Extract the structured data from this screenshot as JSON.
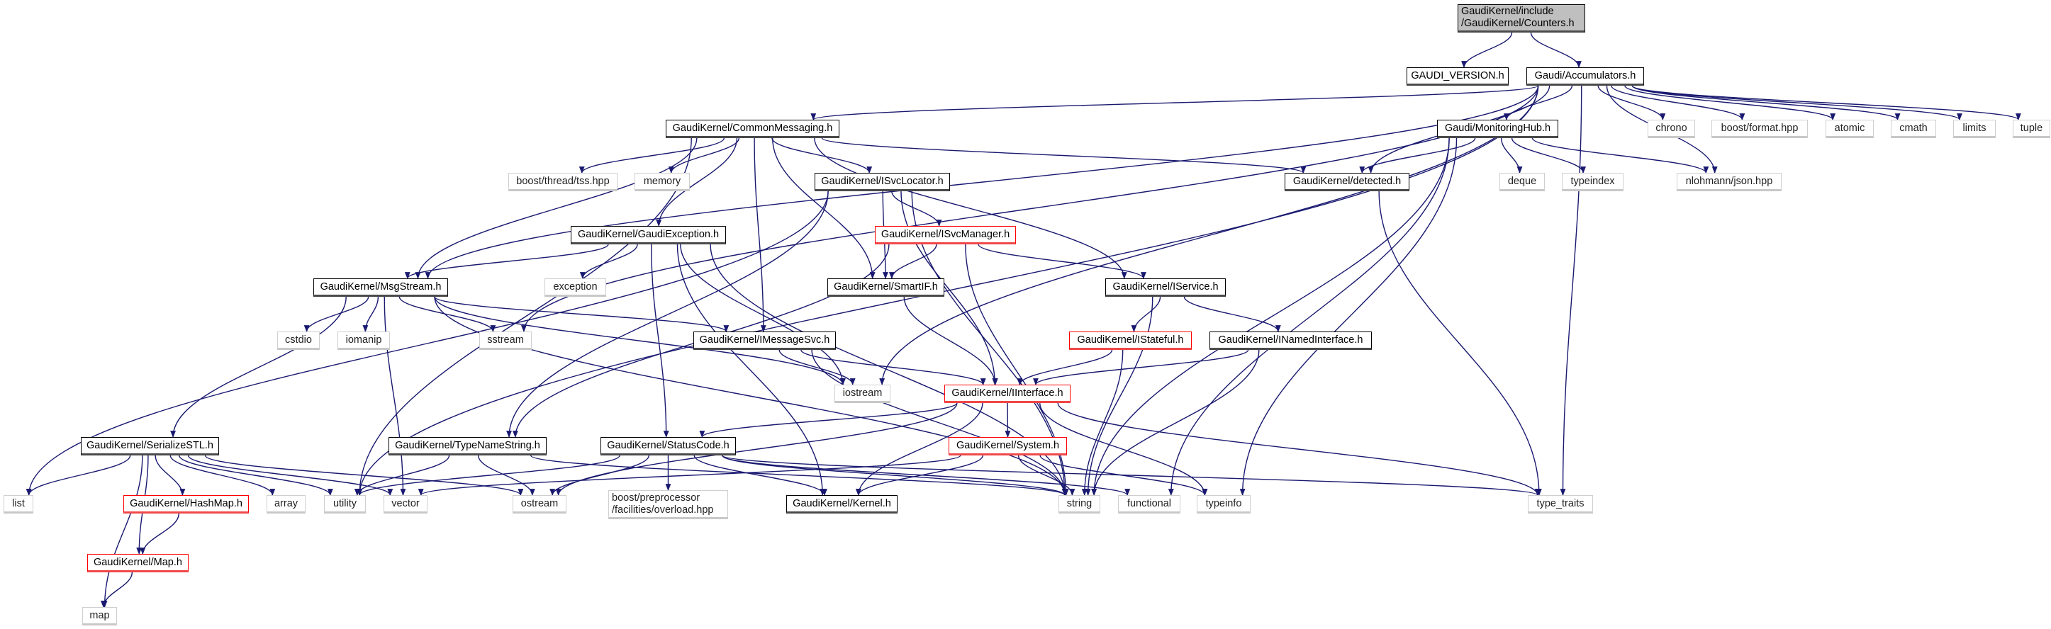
{
  "colors": {
    "edge": "#191970",
    "root_fill": "#bfbfbf",
    "truncated_border": "#ff0000",
    "external_border": "#cfcfcf",
    "documented_border": "#000000"
  },
  "nodes": [
    {
      "id": "counters",
      "label": "GaudiKernel/include",
      "label2": "/GaudiKernel/Counters.h",
      "kind": "root"
    },
    {
      "id": "gaudi-version",
      "label": "GAUDI_VERSION.h",
      "kind": "documented"
    },
    {
      "id": "accumulators",
      "label": "Gaudi/Accumulators.h",
      "kind": "documented"
    },
    {
      "id": "common-messaging",
      "label": "GaudiKernel/CommonMessaging.h",
      "kind": "documented"
    },
    {
      "id": "monitoring-hub",
      "label": "Gaudi/MonitoringHub.h",
      "kind": "documented"
    },
    {
      "id": "chrono",
      "label": "chrono",
      "kind": "external"
    },
    {
      "id": "boost-format",
      "label": "boost/format.hpp",
      "kind": "external"
    },
    {
      "id": "atomic",
      "label": "atomic",
      "kind": "external"
    },
    {
      "id": "cmath",
      "label": "cmath",
      "kind": "external"
    },
    {
      "id": "limits",
      "label": "limits",
      "kind": "external"
    },
    {
      "id": "tuple",
      "label": "tuple",
      "kind": "external"
    },
    {
      "id": "tss",
      "label": "boost/thread/tss.hpp",
      "kind": "external"
    },
    {
      "id": "memory",
      "label": "memory",
      "kind": "external"
    },
    {
      "id": "isvclocator",
      "label": "GaudiKernel/ISvcLocator.h",
      "kind": "documented"
    },
    {
      "id": "detected",
      "label": "GaudiKernel/detected.h",
      "kind": "documented"
    },
    {
      "id": "deque",
      "label": "deque",
      "kind": "external"
    },
    {
      "id": "typeindex",
      "label": "typeindex",
      "kind": "external"
    },
    {
      "id": "json",
      "label": "nlohmann/json.hpp",
      "kind": "external"
    },
    {
      "id": "gaudi-exception",
      "label": "GaudiKernel/GaudiException.h",
      "kind": "documented"
    },
    {
      "id": "isvcmanager",
      "label": "GaudiKernel/ISvcManager.h",
      "kind": "truncated"
    },
    {
      "id": "msgstream",
      "label": "GaudiKernel/MsgStream.h",
      "kind": "documented"
    },
    {
      "id": "exception",
      "label": "exception",
      "kind": "external"
    },
    {
      "id": "smartif",
      "label": "GaudiKernel/SmartIF.h",
      "kind": "documented"
    },
    {
      "id": "iservice",
      "label": "GaudiKernel/IService.h",
      "kind": "documented"
    },
    {
      "id": "cstdio",
      "label": "cstdio",
      "kind": "external"
    },
    {
      "id": "iomanip",
      "label": "iomanip",
      "kind": "external"
    },
    {
      "id": "sstream",
      "label": "sstream",
      "kind": "external"
    },
    {
      "id": "imessagesvc",
      "label": "GaudiKernel/IMessageSvc.h",
      "kind": "documented"
    },
    {
      "id": "istateful",
      "label": "GaudiKernel/IStateful.h",
      "kind": "truncated"
    },
    {
      "id": "inamedinterface",
      "label": "GaudiKernel/INamedInterface.h",
      "kind": "documented"
    },
    {
      "id": "iostream",
      "label": "iostream",
      "kind": "external"
    },
    {
      "id": "iinterface",
      "label": "GaudiKernel/IInterface.h",
      "kind": "truncated"
    },
    {
      "id": "serializestl",
      "label": "GaudiKernel/SerializeSTL.h",
      "kind": "documented"
    },
    {
      "id": "typenamestring",
      "label": "GaudiKernel/TypeNameString.h",
      "kind": "documented"
    },
    {
      "id": "statuscode",
      "label": "GaudiKernel/StatusCode.h",
      "kind": "documented"
    },
    {
      "id": "system",
      "label": "GaudiKernel/System.h",
      "kind": "truncated"
    },
    {
      "id": "list",
      "label": "list",
      "kind": "external"
    },
    {
      "id": "hashmap",
      "label": "GaudiKernel/HashMap.h",
      "kind": "truncated"
    },
    {
      "id": "array",
      "label": "array",
      "kind": "external"
    },
    {
      "id": "utility",
      "label": "utility",
      "kind": "external"
    },
    {
      "id": "vector",
      "label": "vector",
      "kind": "external"
    },
    {
      "id": "ostream",
      "label": "ostream",
      "kind": "external"
    },
    {
      "id": "boost-pp",
      "label": "boost/preprocessor",
      "label2": "/facilities/overload.hpp",
      "kind": "external"
    },
    {
      "id": "kernel",
      "label": "GaudiKernel/Kernel.h",
      "kind": "documented"
    },
    {
      "id": "string",
      "label": "string",
      "kind": "external"
    },
    {
      "id": "functional",
      "label": "functional",
      "kind": "external"
    },
    {
      "id": "typeinfo",
      "label": "typeinfo",
      "kind": "external"
    },
    {
      "id": "type-traits",
      "label": "type_traits",
      "kind": "external"
    },
    {
      "id": "map-h",
      "label": "GaudiKernel/Map.h",
      "kind": "truncated"
    },
    {
      "id": "map",
      "label": "map",
      "kind": "external"
    }
  ],
  "edges": [
    [
      "counters",
      "gaudi-version"
    ],
    [
      "counters",
      "accumulators"
    ],
    [
      "accumulators",
      "common-messaging"
    ],
    [
      "accumulators",
      "monitoring-hub"
    ],
    [
      "accumulators",
      "chrono"
    ],
    [
      "accumulators",
      "boost-format"
    ],
    [
      "accumulators",
      "atomic"
    ],
    [
      "accumulators",
      "cmath"
    ],
    [
      "accumulators",
      "limits"
    ],
    [
      "accumulators",
      "tuple"
    ],
    [
      "accumulators",
      "detected"
    ],
    [
      "accumulators",
      "json"
    ],
    [
      "accumulators",
      "msgstream"
    ],
    [
      "accumulators",
      "utility"
    ],
    [
      "accumulators",
      "sstream"
    ],
    [
      "accumulators",
      "iostream"
    ],
    [
      "accumulators",
      "type-traits"
    ],
    [
      "monitoring-hub",
      "detected"
    ],
    [
      "monitoring-hub",
      "deque"
    ],
    [
      "monitoring-hub",
      "typeindex"
    ],
    [
      "monitoring-hub",
      "json"
    ],
    [
      "monitoring-hub",
      "string"
    ],
    [
      "monitoring-hub",
      "functional"
    ],
    [
      "monitoring-hub",
      "typeinfo"
    ],
    [
      "detected",
      "type-traits"
    ],
    [
      "common-messaging",
      "tss"
    ],
    [
      "common-messaging",
      "memory"
    ],
    [
      "common-messaging",
      "isvclocator"
    ],
    [
      "common-messaging",
      "gaudi-exception"
    ],
    [
      "common-messaging",
      "msgstream"
    ],
    [
      "common-messaging",
      "smartif"
    ],
    [
      "common-messaging",
      "imessagesvc"
    ],
    [
      "common-messaging",
      "iservice"
    ],
    [
      "common-messaging",
      "detected"
    ],
    [
      "common-messaging",
      "utility"
    ],
    [
      "isvclocator",
      "isvcmanager"
    ],
    [
      "isvclocator",
      "smartif"
    ],
    [
      "isvclocator",
      "iinterface"
    ],
    [
      "isvclocator",
      "string"
    ],
    [
      "isvclocator",
      "typenamestring"
    ],
    [
      "isvclocator",
      "list"
    ],
    [
      "gaudi-exception",
      "msgstream"
    ],
    [
      "gaudi-exception",
      "exception"
    ],
    [
      "gaudi-exception",
      "statuscode"
    ],
    [
      "gaudi-exception",
      "kernel"
    ],
    [
      "gaudi-exception",
      "string"
    ],
    [
      "gaudi-exception",
      "iostream"
    ],
    [
      "isvcmanager",
      "smartif"
    ],
    [
      "isvcmanager",
      "iservice"
    ],
    [
      "isvcmanager",
      "string"
    ],
    [
      "isvcmanager",
      "typenamestring"
    ],
    [
      "msgstream",
      "cstdio"
    ],
    [
      "msgstream",
      "iomanip"
    ],
    [
      "msgstream",
      "sstream"
    ],
    [
      "msgstream",
      "serializestl"
    ],
    [
      "msgstream",
      "vector"
    ],
    [
      "msgstream",
      "imessagesvc"
    ],
    [
      "msgstream",
      "string"
    ],
    [
      "msgstream",
      "iostream"
    ],
    [
      "smartif",
      "iinterface"
    ],
    [
      "iservice",
      "istateful"
    ],
    [
      "iservice",
      "inamedinterface"
    ],
    [
      "iservice",
      "string"
    ],
    [
      "istateful",
      "iinterface"
    ],
    [
      "istateful",
      "string"
    ],
    [
      "inamedinterface",
      "iinterface"
    ],
    [
      "inamedinterface",
      "string"
    ],
    [
      "imessagesvc",
      "iostream"
    ],
    [
      "imessagesvc",
      "iinterface"
    ],
    [
      "imessagesvc",
      "string"
    ],
    [
      "iinterface",
      "ostream"
    ],
    [
      "iinterface",
      "statuscode"
    ],
    [
      "iinterface",
      "system"
    ],
    [
      "iinterface",
      "kernel"
    ],
    [
      "iinterface",
      "typeinfo"
    ],
    [
      "iinterface",
      "type-traits"
    ],
    [
      "serializestl",
      "list"
    ],
    [
      "serializestl",
      "hashmap"
    ],
    [
      "serializestl",
      "array"
    ],
    [
      "serializestl",
      "utility"
    ],
    [
      "serializestl",
      "vector"
    ],
    [
      "serializestl",
      "ostream"
    ],
    [
      "serializestl",
      "map-h"
    ],
    [
      "serializestl",
      "map"
    ],
    [
      "hashmap",
      "map-h"
    ],
    [
      "map-h",
      "map"
    ],
    [
      "typenamestring",
      "utility"
    ],
    [
      "typenamestring",
      "ostream"
    ],
    [
      "typenamestring",
      "string"
    ],
    [
      "statuscode",
      "utility"
    ],
    [
      "statuscode",
      "ostream"
    ],
    [
      "statuscode",
      "boost-pp"
    ],
    [
      "statuscode",
      "kernel"
    ],
    [
      "statuscode",
      "string"
    ],
    [
      "statuscode",
      "functional"
    ],
    [
      "statuscode",
      "type-traits"
    ],
    [
      "system",
      "vector"
    ],
    [
      "system",
      "string"
    ],
    [
      "system",
      "kernel"
    ],
    [
      "system",
      "typeinfo"
    ]
  ]
}
